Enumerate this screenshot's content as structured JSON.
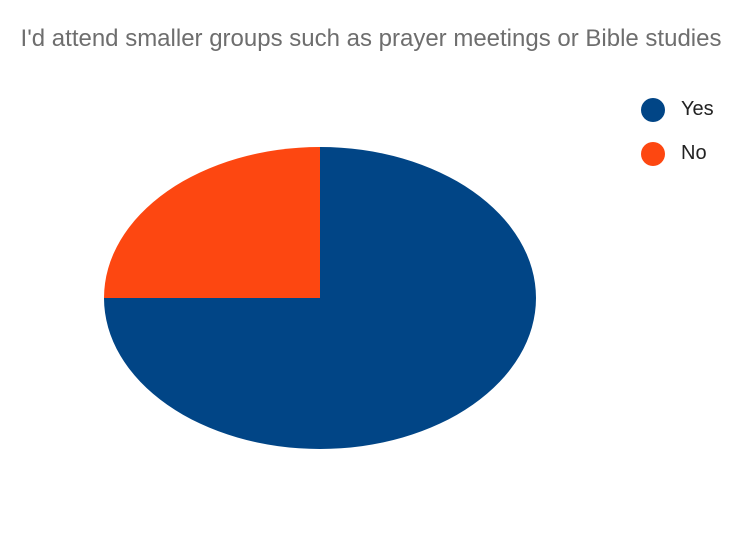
{
  "chart_data": {
    "type": "pie",
    "title": "I'd attend smaller groups such as prayer meetings or Bible studies",
    "categories": [
      "Yes",
      "No"
    ],
    "values": [
      75,
      25
    ],
    "colors": [
      "#014586",
      "#fd4711"
    ],
    "side_colors": [
      "#003062",
      "#b8330c"
    ],
    "legend_position": "top-right",
    "style": "3d"
  }
}
